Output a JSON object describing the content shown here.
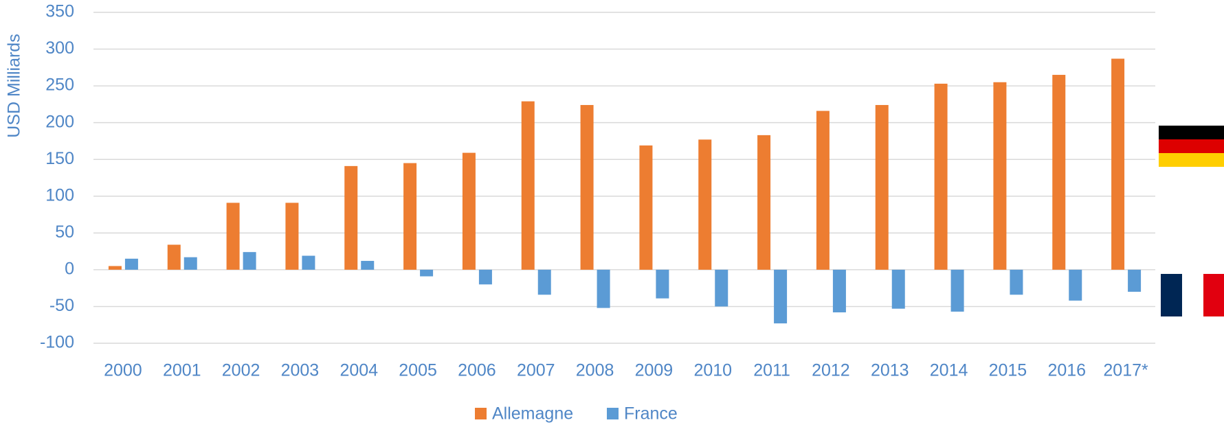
{
  "chart_data": {
    "type": "bar",
    "y_label": "USD Milliards",
    "categories": [
      "2000",
      "2001",
      "2002",
      "2003",
      "2004",
      "2005",
      "2006",
      "2007",
      "2008",
      "2009",
      "2010",
      "2011",
      "2012",
      "2013",
      "2014",
      "2015",
      "2016",
      "2017*"
    ],
    "series": [
      {
        "name": "Allemagne",
        "color": "#ed7d31",
        "values": [
          5,
          34,
          91,
          91,
          141,
          145,
          159,
          229,
          224,
          169,
          177,
          183,
          216,
          224,
          253,
          255,
          265,
          287
        ]
      },
      {
        "name": "France",
        "color": "#5b9bd5",
        "values": [
          15,
          17,
          24,
          19,
          12,
          -9,
          -20,
          -34,
          -52,
          -39,
          -50,
          -73,
          -58,
          -53,
          -57,
          -34,
          -42,
          -30
        ]
      }
    ],
    "ylim": [
      -100,
      350
    ],
    "yticks": [
      -100,
      -50,
      0,
      50,
      100,
      150,
      200,
      250,
      300,
      350
    ],
    "grid": true,
    "legend": "bottom"
  }
}
